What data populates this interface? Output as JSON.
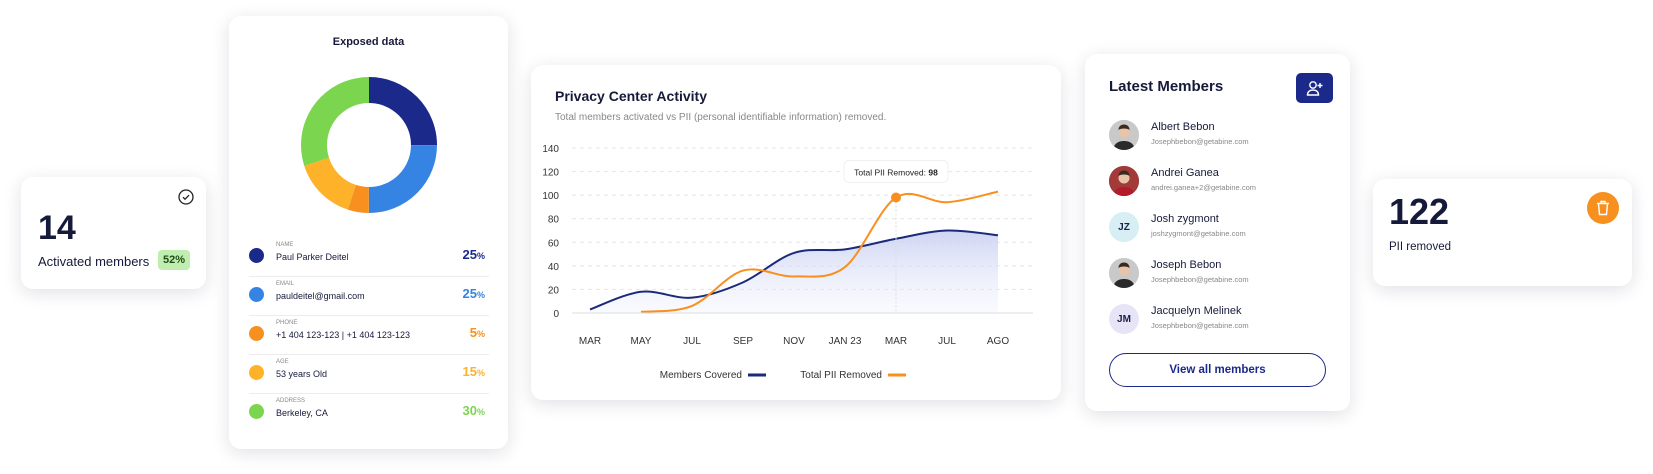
{
  "activated": {
    "value": "14",
    "label": "Activated members",
    "badge": "52%",
    "icon": "check-circle-icon"
  },
  "exposed": {
    "title": "Exposed data",
    "items": [
      {
        "key": "NAME",
        "value": "Paul Parker Deitel",
        "percent": "25",
        "color": "#1b2a8a"
      },
      {
        "key": "EMAIL",
        "value": "pauldeitel@gmail.com",
        "percent": "25",
        "color": "#3584e4"
      },
      {
        "key": "PHONE",
        "value": "+1 404 123-123   |   +1 404 123-123",
        "percent": "5",
        "color": "#f7901e"
      },
      {
        "key": "AGE",
        "value": "53 years Old",
        "percent": "15",
        "color": "#fdb22a"
      },
      {
        "key": "ADDRESS",
        "value": "Berkeley, CA",
        "percent": "30",
        "color": "#7bd54f"
      }
    ],
    "percent_sign": "%"
  },
  "activity": {
    "title": "Privacy Center Activity",
    "subtitle": "Total members activated vs PII (personal identifiable information) removed.",
    "tooltip": {
      "label": "Total PII Removed:",
      "value": "98"
    }
  },
  "chart_data": {
    "type": "line",
    "categories": [
      "MAR",
      "MAY",
      "JUL",
      "SEP",
      "NOV",
      "JAN 23",
      "MAR",
      "JUL",
      "AGO"
    ],
    "yticks": [
      0,
      20,
      40,
      60,
      80,
      100,
      120,
      140
    ],
    "ylim": [
      0,
      140
    ],
    "grid": true,
    "legend_position": "bottom",
    "series": [
      {
        "name": "Members Covered",
        "color": "#1b2a7a",
        "values": [
          3,
          18,
          13,
          26,
          51,
          54,
          63,
          70,
          66
        ]
      },
      {
        "name": "Total PII Removed",
        "color": "#f7901e",
        "values": [
          null,
          1,
          6,
          36,
          31,
          39,
          98,
          94,
          103
        ]
      }
    ]
  },
  "members": {
    "title": "Latest Members",
    "add_icon": "add-user-icon",
    "list": [
      {
        "name": "Albert Bebon",
        "email": "Josephbebon@getabine.com",
        "initials": "",
        "bg": "#c9c9c9"
      },
      {
        "name": "Andrei Ganea",
        "email": "andrei.ganea+2@getabine.com",
        "initials": "",
        "bg": "#a23a3a"
      },
      {
        "name": "Josh zygmont",
        "email": "joshzygmont@getabine.com",
        "initials": "JZ",
        "bg": "#d6eef4"
      },
      {
        "name": "Joseph Bebon",
        "email": "Josephbebon@getabine.com",
        "initials": "",
        "bg": "#c9c9c9"
      },
      {
        "name": "Jacquelyn Melinek",
        "email": "Josephbebon@getabine.com",
        "initials": "JM",
        "bg": "#e6e4f6"
      }
    ],
    "view_all": "View all members"
  },
  "pii": {
    "value": "122",
    "label": "PII removed",
    "icon": "trash-icon"
  }
}
